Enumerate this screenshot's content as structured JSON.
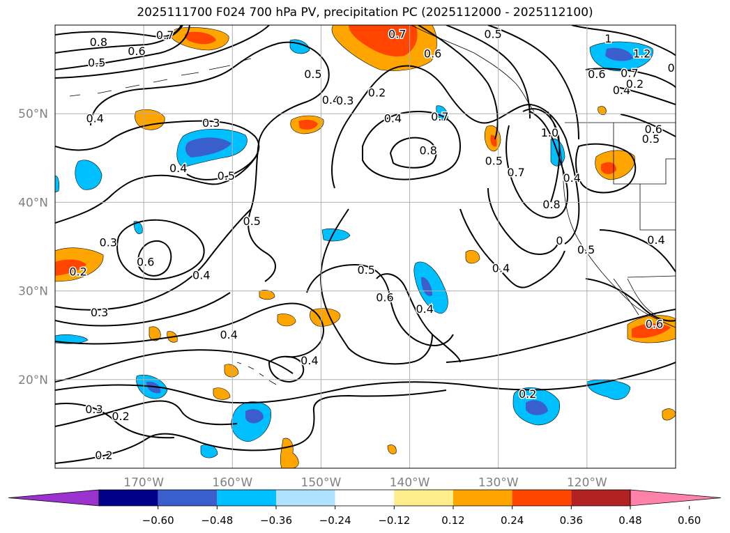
{
  "title": "2025111700 F024 700 hPa PV, precipitation PC (2025112000 - 2025112100)",
  "map": {
    "lon_range": [
      -180,
      -110
    ],
    "lat_range": [
      10,
      60
    ],
    "lat_labels": [
      {
        "lat": 50,
        "text": "50°N"
      },
      {
        "lat": 40,
        "text": "40°N"
      },
      {
        "lat": 30,
        "text": "30°N"
      },
      {
        "lat": 20,
        "text": "20°N"
      }
    ],
    "lon_labels": [
      {
        "lon": -170,
        "text": "170°W"
      },
      {
        "lon": -160,
        "text": "160°W"
      },
      {
        "lon": -150,
        "text": "150°W"
      },
      {
        "lon": -140,
        "text": "140°W"
      },
      {
        "lon": -130,
        "text": "130°W"
      },
      {
        "lon": -120,
        "text": "120°W"
      }
    ],
    "gridline_color": "#b0b0b0",
    "tick_label_color": "#808080",
    "contour_labels": [
      {
        "text": "0.8",
        "lon": -175.1,
        "lat": 58.1
      },
      {
        "text": "0.5",
        "lon": -175.3,
        "lat": 55.8
      },
      {
        "text": "0.6",
        "lon": -170.8,
        "lat": 57.1
      },
      {
        "text": "0.7",
        "lon": -167.6,
        "lat": 58.9
      },
      {
        "text": "0.4",
        "lon": -175.5,
        "lat": 49.5
      },
      {
        "text": "0.3",
        "lon": -162.4,
        "lat": 49.0
      },
      {
        "text": "0.5",
        "lon": -160.7,
        "lat": 43.0
      },
      {
        "text": "0.5",
        "lon": -150.9,
        "lat": 54.5
      },
      {
        "text": "0.4",
        "lon": -148.9,
        "lat": 51.6
      },
      {
        "text": "0.3",
        "lon": -147.3,
        "lat": 51.5
      },
      {
        "text": "0.2",
        "lon": -143.7,
        "lat": 52.4
      },
      {
        "text": "0.4",
        "lon": -141.9,
        "lat": 49.5
      },
      {
        "text": "0.8",
        "lon": -137.9,
        "lat": 45.9
      },
      {
        "text": "0.7",
        "lon": -141.4,
        "lat": 59.0
      },
      {
        "text": "0.6",
        "lon": -137.4,
        "lat": 56.8
      },
      {
        "text": "0.5",
        "lon": -130.6,
        "lat": 59.0
      },
      {
        "text": "0.7",
        "lon": -136.6,
        "lat": 49.7
      },
      {
        "text": "0.5",
        "lon": -130.5,
        "lat": 44.7
      },
      {
        "text": "0.7",
        "lon": -128.0,
        "lat": 43.4
      },
      {
        "text": "1.0",
        "lon": -124.2,
        "lat": 47.9
      },
      {
        "text": "0.8",
        "lon": -124.0,
        "lat": 39.8
      },
      {
        "text": "0",
        "lon": -123.1,
        "lat": 35.7
      },
      {
        "text": "0.4",
        "lon": -129.7,
        "lat": 32.6
      },
      {
        "text": "0.5",
        "lon": -120.1,
        "lat": 34.7
      },
      {
        "text": "0.4",
        "lon": -112.2,
        "lat": 35.8
      },
      {
        "text": "0.5",
        "lon": -144.9,
        "lat": 32.4
      },
      {
        "text": "0.6",
        "lon": -142.8,
        "lat": 29.3
      },
      {
        "text": "0.4",
        "lon": -138.3,
        "lat": 28.0
      },
      {
        "text": "0.4",
        "lon": -166.1,
        "lat": 43.9
      },
      {
        "text": "0.4",
        "lon": -121.7,
        "lat": 42.8
      },
      {
        "text": "0.5",
        "lon": -157.8,
        "lat": 37.9
      },
      {
        "text": "0.3",
        "lon": -174.0,
        "lat": 35.5
      },
      {
        "text": "0.6",
        "lon": -169.8,
        "lat": 33.3
      },
      {
        "text": "0.4",
        "lon": -163.5,
        "lat": 31.8
      },
      {
        "text": "0.2",
        "lon": -177.4,
        "lat": 32.2
      },
      {
        "text": "0.3",
        "lon": -175.0,
        "lat": 27.6
      },
      {
        "text": "0.4",
        "lon": -160.4,
        "lat": 25.1
      },
      {
        "text": "0.4",
        "lon": -151.3,
        "lat": 22.2
      },
      {
        "text": "0.3",
        "lon": -175.6,
        "lat": 16.7
      },
      {
        "text": "0.2",
        "lon": -172.6,
        "lat": 15.9
      },
      {
        "text": "0.2",
        "lon": -174.5,
        "lat": 11.5
      },
      {
        "text": "0.2",
        "lon": -126.7,
        "lat": 18.4
      },
      {
        "text": "1",
        "lon": -117.6,
        "lat": 58.5
      },
      {
        "text": "1.2",
        "lon": -113.8,
        "lat": 56.8
      },
      {
        "text": "0.6",
        "lon": -118.9,
        "lat": 54.5
      },
      {
        "text": "0.7",
        "lon": -115.2,
        "lat": 54.6
      },
      {
        "text": "0.4",
        "lon": -116.1,
        "lat": 52.7
      },
      {
        "text": "0.6",
        "lon": -112.5,
        "lat": 48.3
      },
      {
        "text": "0.5",
        "lon": -112.8,
        "lat": 47.2
      },
      {
        "text": "0",
        "lon": -110.5,
        "lat": 55.2
      },
      {
        "text": "0.2",
        "lon": -114.6,
        "lat": 53.4
      },
      {
        "text": "0.6",
        "lon": -112.4,
        "lat": 26.3
      }
    ]
  },
  "colorbar": {
    "ticks": [
      "−0.60",
      "−0.48",
      "−0.36",
      "−0.24",
      "−0.12",
      "0.12",
      "0.24",
      "0.36",
      "0.48",
      "0.60"
    ],
    "colors": [
      "#9a32cd",
      "#00008b",
      "#3a5fcd",
      "#00bfff",
      "#b0e2ff",
      "#ffffff",
      "#ffec8b",
      "#ffa500",
      "#ff4500",
      "#b22222",
      "#ff82ab"
    ]
  }
}
